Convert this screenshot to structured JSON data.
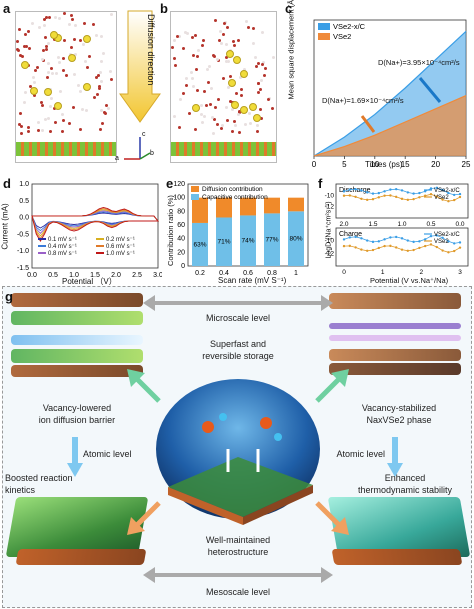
{
  "labels": {
    "a": "a",
    "b": "b",
    "c": "c",
    "d": "d",
    "e": "e",
    "f": "f",
    "g": "g"
  },
  "panel_a": {
    "arrow_text": "Diffusion direction",
    "axis_c": "c",
    "axis_a": "a",
    "axis_b": "b"
  },
  "panel_c": {
    "ylabel": "Mean square displacement (Å²)",
    "xlabel": "Times (ps)",
    "legend": [
      "VSe2-x/C",
      "VSe2"
    ],
    "annot_top": "D(Na+)=3.95×10⁻⁴cm²/s",
    "annot_bottom": "D(Na+)=1.69×10⁻⁴cm²/s",
    "xticks": [
      "0",
      "5",
      "10",
      "15",
      "20",
      "25"
    ]
  },
  "panel_d": {
    "ylabel": "Current (mA)",
    "xlabel": "Potential （V）",
    "legend": [
      "0.1 mV s⁻¹",
      "0.2 mV s⁻¹",
      "0.4 mV s⁻¹",
      "0.6 mV s⁻¹",
      "0.8 mV s⁻¹",
      "1.0 mV s⁻¹"
    ],
    "xticks": [
      "0.0",
      "0.5",
      "1.0",
      "1.5",
      "2.0",
      "2.5",
      "3.0"
    ],
    "yticks": [
      "1.0",
      "0.5",
      "0.0",
      "-0.5",
      "-1.0",
      "-1.5"
    ]
  },
  "panel_e": {
    "ylabel": "Contribution ratio (%)",
    "xlabel": "Scan rate (mV S⁻¹)",
    "legend": [
      "Diffusion contribution",
      "Capacitive contribution"
    ],
    "yticks": [
      "0",
      "20",
      "40",
      "60",
      "80",
      "100",
      "120"
    ]
  },
  "panel_f": {
    "ylabel": "LogD (Na⁺cm²s⁻¹)",
    "xlabel": "Potential (V vs.Na⁺/Na)",
    "top_title": "Discharge",
    "bottom_title": "Charge",
    "legend": [
      "VSe2-x/C",
      "VSe2"
    ],
    "top_xticks": [
      "2.0",
      "1.5",
      "1.0",
      "0.5",
      "0.0"
    ],
    "bottom_xticks": [
      "0",
      "1",
      "2",
      "3"
    ],
    "top_yticks": [
      "-10",
      "-12"
    ],
    "bottom_yticks": [
      "-10",
      "-12"
    ]
  },
  "panel_g": {
    "microscale": "Microscale level",
    "superfast": "Superfast and",
    "reversible": "reversible storage",
    "vacancy_lowered_1": "Vacancy-lowered",
    "vacancy_lowered_2": "ion diffusion barrier",
    "vacancy_stabilized_1": "Vacancy-stabilized",
    "vacancy_stabilized_2": "NaxVSe2 phase",
    "atomic_left": "Atomic level",
    "atomic_right": "Atomic level",
    "boosted_1": "Boosted reaction",
    "boosted_2": "kinetics",
    "enhanced_1": "Enhanced",
    "enhanced_2": "thermodynamic stability",
    "well_1": "Well-maintained",
    "well_2": "heterostructure",
    "mesoscale": "Mesoscale level"
  },
  "chart_data": [
    {
      "type": "line",
      "panel": "c",
      "xlabel": "Times (ps)",
      "ylabel": "Mean square displacement (Å²)",
      "xlim": [
        0,
        25
      ],
      "series": [
        {
          "name": "VSe2-x/C",
          "x": [
            0,
            5,
            10,
            15,
            20,
            25
          ],
          "y": [
            0,
            50,
            110,
            180,
            255,
            330
          ]
        },
        {
          "name": "VSe2",
          "x": [
            0,
            5,
            10,
            15,
            20,
            25
          ],
          "y": [
            0,
            25,
            55,
            90,
            125,
            160
          ]
        }
      ]
    },
    {
      "type": "line",
      "panel": "d",
      "xlabel": "Potential （V）",
      "ylabel": "Current (mA)",
      "xlim": [
        0,
        3.0
      ],
      "ylim": [
        -1.5,
        1.0
      ],
      "series": [
        {
          "name": "0.1 mV s⁻¹"
        },
        {
          "name": "0.2 mV s⁻¹"
        },
        {
          "name": "0.4 mV s⁻¹"
        },
        {
          "name": "0.6 mV s⁻¹"
        },
        {
          "name": "0.8 mV s⁻¹"
        },
        {
          "name": "1.0 mV s⁻¹"
        }
      ]
    },
    {
      "type": "bar",
      "panel": "e",
      "xlabel": "Scan rate (mV S⁻¹)",
      "ylabel": "Contribution ratio (%)",
      "ylim": [
        0,
        120
      ],
      "categories": [
        "0.2",
        "0.4",
        "0.6",
        "0.8",
        "1"
      ],
      "series": [
        {
          "name": "Capacitive contribution",
          "values": [
            63,
            71,
            74,
            77,
            80
          ],
          "labels": [
            "63%",
            "71%",
            "74%",
            "77%",
            "80%"
          ]
        },
        {
          "name": "Diffusion contribution",
          "values": [
            37,
            29,
            26,
            23,
            20
          ]
        }
      ]
    },
    {
      "type": "line",
      "panel": "f",
      "xlabel": "Potential (V vs.Na⁺/Na)",
      "ylabel": "LogD (Na⁺cm²s⁻¹)",
      "series": [
        {
          "name": "VSe2-x/C"
        },
        {
          "name": "VSe2"
        }
      ]
    }
  ]
}
